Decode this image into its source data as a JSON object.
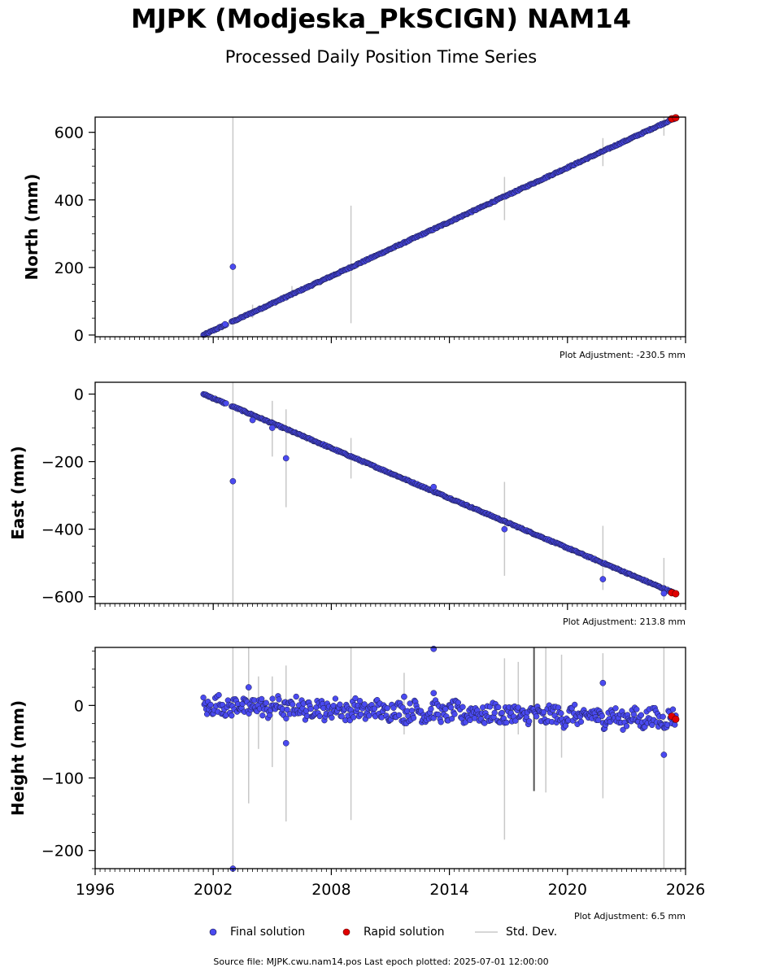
{
  "title": "MJPK (Modjeska_PkSCIGN) NAM14",
  "subtitle": "Processed Daily Position Time Series",
  "footer": "Source file: MJPK.cwu.nam14.pos  Last epoch plotted: 2025-07-01 12:00:00",
  "legend": {
    "final": "Final solution",
    "rapid": "Rapid solution",
    "std": "Std. Dev."
  },
  "colors": {
    "final": "#4a4af0",
    "final_edge": "#1a1a40",
    "rapid": "#e00000",
    "std": "#c8c8c8"
  },
  "chart_data": [
    {
      "type": "scatter",
      "ylabel": "North (mm)",
      "xlim": [
        1996,
        2026
      ],
      "ylim": [
        -5,
        645
      ],
      "yticks": [
        0,
        200,
        400,
        600
      ],
      "xticks": [
        1996,
        2002,
        2008,
        2014,
        2020,
        2026
      ],
      "show_xtick_labels": false,
      "adjustment": "Plot Adjustment: -230.5 mm",
      "trend": {
        "start": [
          2001.5,
          0
        ],
        "end": [
          2025.5,
          643
        ]
      },
      "outliers": [
        [
          2003.0,
          202
        ],
        [
          2002.6,
          32
        ]
      ],
      "errorbars": [
        [
          2003.0,
          -5,
          645
        ],
        [
          2009.0,
          35,
          383
        ],
        [
          2016.8,
          340,
          468
        ],
        [
          2021.8,
          500,
          583
        ],
        [
          2004.0,
          50,
          90
        ],
        [
          2006.0,
          110,
          145
        ],
        [
          2024.9,
          590,
          645
        ]
      ],
      "rapid": [
        [
          2025.3,
          640
        ],
        [
          2025.5,
          643
        ]
      ]
    },
    {
      "type": "scatter",
      "ylabel": "East (mm)",
      "xlim": [
        1996,
        2026
      ],
      "ylim": [
        -620,
        35
      ],
      "yticks": [
        0,
        -200,
        -400,
        -600
      ],
      "xticks": [
        1996,
        2002,
        2008,
        2014,
        2020,
        2026
      ],
      "show_xtick_labels": false,
      "adjustment": "Plot Adjustment: 213.8 mm",
      "trend": {
        "start": [
          2001.5,
          0
        ],
        "end": [
          2025.5,
          -591
        ]
      },
      "outliers": [
        [
          2003.0,
          -258
        ],
        [
          2004.0,
          -77
        ],
        [
          2005.0,
          -100
        ],
        [
          2005.7,
          -190
        ],
        [
          2016.8,
          -400
        ],
        [
          2021.8,
          -548
        ],
        [
          2013.2,
          -275
        ],
        [
          2024.9,
          -590
        ]
      ],
      "errorbars": [
        [
          2003.0,
          -620,
          35
        ],
        [
          2005.0,
          -185,
          -20
        ],
        [
          2005.7,
          -335,
          -45
        ],
        [
          2009.0,
          -250,
          -130
        ],
        [
          2016.8,
          -538,
          -260
        ],
        [
          2021.8,
          -580,
          -390
        ],
        [
          2024.9,
          -610,
          -485
        ]
      ],
      "rapid": [
        [
          2025.3,
          -588
        ],
        [
          2025.5,
          -591
        ]
      ]
    },
    {
      "type": "scatter",
      "ylabel": "Height (mm)",
      "xlim": [
        1996,
        2026
      ],
      "ylim": [
        -225,
        80
      ],
      "yticks": [
        0,
        -100,
        -200
      ],
      "xticks": [
        1996,
        2002,
        2008,
        2014,
        2020,
        2026
      ],
      "show_xtick_labels": true,
      "adjustment": "Plot Adjustment: 6.5 mm",
      "trend": {
        "start": [
          2001.5,
          0
        ],
        "end": [
          2025.5,
          -19
        ]
      },
      "outliers": [
        [
          2003.0,
          -225
        ],
        [
          2003.8,
          25
        ],
        [
          2005.7,
          -52
        ],
        [
          2011.7,
          12
        ],
        [
          2013.2,
          78
        ],
        [
          2013.2,
          17
        ],
        [
          2021.8,
          31
        ],
        [
          2024.9,
          -68
        ]
      ],
      "errorbars": [
        [
          2003.0,
          -225,
          80
        ],
        [
          2003.8,
          -135,
          80
        ],
        [
          2004.3,
          -60,
          40
        ],
        [
          2005.0,
          -85,
          40
        ],
        [
          2005.7,
          -160,
          55
        ],
        [
          2009.0,
          -158,
          80
        ],
        [
          2011.7,
          -40,
          45
        ],
        [
          2016.8,
          -185,
          65
        ],
        [
          2017.5,
          -40,
          60
        ],
        [
          2018.9,
          -120,
          80
        ],
        [
          2019.7,
          -72,
          70
        ],
        [
          2021.8,
          -128,
          72
        ],
        [
          2024.9,
          -225,
          80
        ]
      ],
      "rapid": [
        [
          2025.3,
          -15
        ],
        [
          2025.5,
          -19
        ]
      ]
    }
  ]
}
